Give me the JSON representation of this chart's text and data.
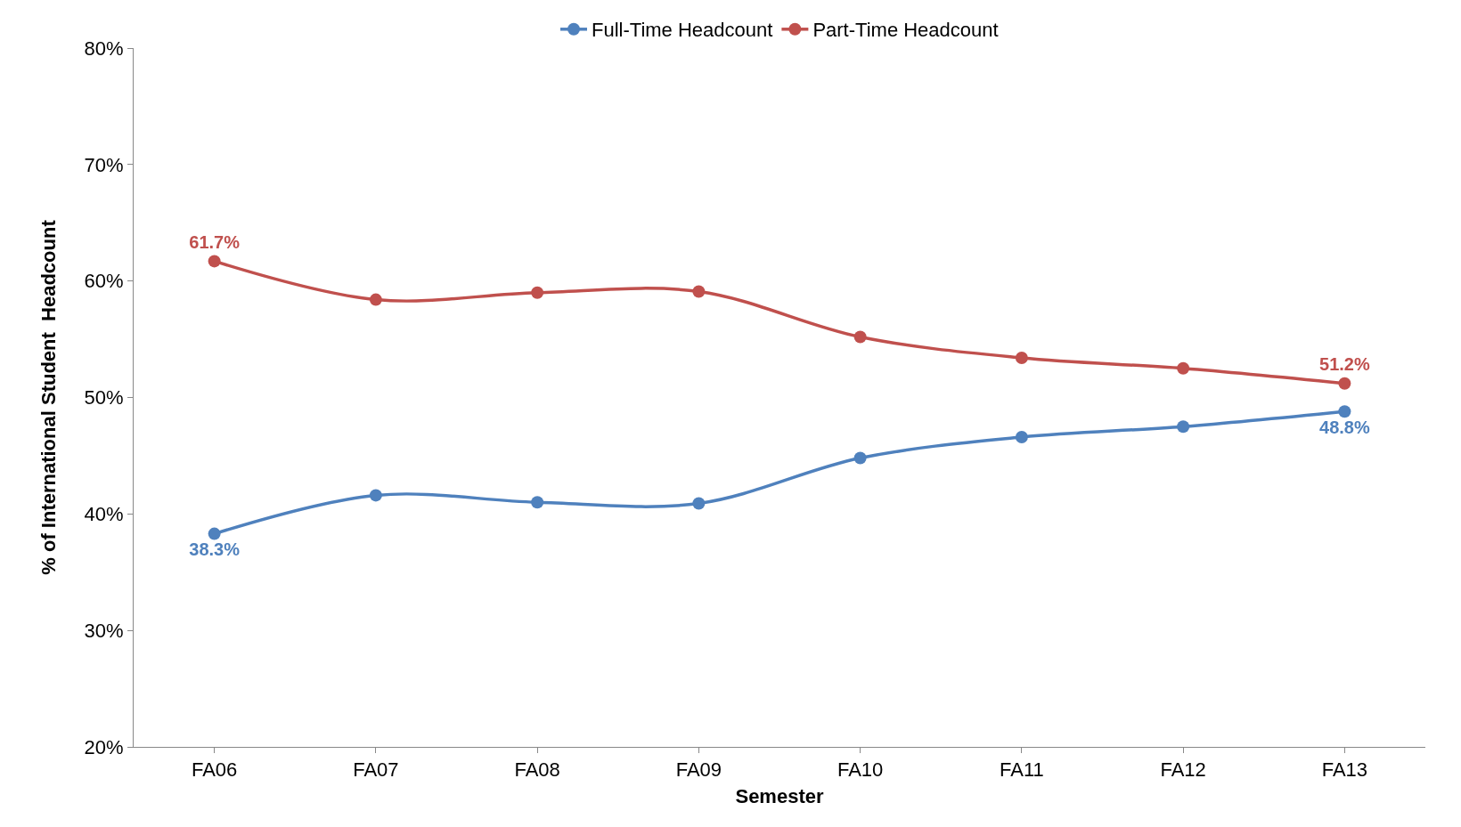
{
  "chart_data": {
    "type": "line",
    "xlabel": "Semester",
    "ylabel": "% of International Student  Headcount",
    "categories": [
      "FA06",
      "FA07",
      "FA08",
      "FA09",
      "FA10",
      "FA11",
      "FA12",
      "FA13"
    ],
    "series": [
      {
        "name": "Full-Time Headcount",
        "color": "#4f81bd",
        "values": [
          38.3,
          41.6,
          41.0,
          40.9,
          44.8,
          46.6,
          47.5,
          48.8
        ],
        "value_labels": [
          "38.3%",
          null,
          null,
          null,
          null,
          null,
          null,
          "48.8%"
        ]
      },
      {
        "name": "Part-Time Headcount",
        "color": "#c0504d",
        "values": [
          61.7,
          58.4,
          59.0,
          59.1,
          55.2,
          53.4,
          52.5,
          51.2
        ],
        "value_labels": [
          "61.7%",
          null,
          null,
          null,
          null,
          null,
          null,
          "51.2%"
        ]
      }
    ],
    "ylim": [
      20,
      80
    ],
    "yticks": [
      {
        "value": 20,
        "label": "20%"
      },
      {
        "value": 30,
        "label": "30%"
      },
      {
        "value": 40,
        "label": "40%"
      },
      {
        "value": 50,
        "label": "50%"
      },
      {
        "value": 60,
        "label": "60%"
      },
      {
        "value": 70,
        "label": "70%"
      },
      {
        "value": 80,
        "label": "80%"
      }
    ],
    "legend": "top",
    "marker": "circle",
    "line_style": "solid"
  }
}
